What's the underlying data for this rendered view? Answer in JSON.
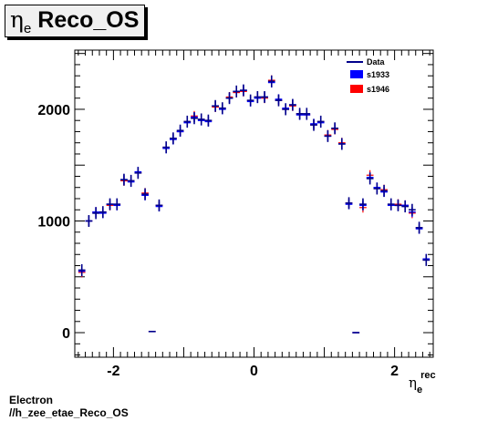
{
  "page": {
    "title_symbol": "η",
    "title_sub": "e",
    "title_text": " Reco_OS",
    "footer_line1": "Electron",
    "footer_line2": "//h_zee_etae_Reco_OS"
  },
  "colors": {
    "data": "#00008b",
    "s1933": "#0000ff",
    "s1946": "#ff0000"
  },
  "chart_data": {
    "type": "scatter",
    "xlim": [
      -2.55,
      2.55
    ],
    "ylim": [
      -220,
      2530
    ],
    "xticks": [
      -2,
      0,
      2
    ],
    "yticks": [
      0,
      1000,
      2000
    ],
    "xlabel_sym": "η",
    "xlabel_sub": "e",
    "xlabel_sup": "rec",
    "bin_width": 0.1,
    "legend": {
      "placement": "top-right",
      "entries": [
        "Data",
        "s1933",
        "s1946"
      ]
    },
    "series": [
      {
        "name": "Data",
        "x": [
          -2.45,
          -2.35,
          -2.25,
          -2.15,
          -2.05,
          -1.95,
          -1.85,
          -1.75,
          -1.65,
          -1.55,
          -1.45,
          -1.35,
          -1.25,
          -1.15,
          -1.05,
          -0.95,
          -0.85,
          -0.75,
          -0.65,
          -0.55,
          -0.45,
          -0.35,
          -0.25,
          -0.15,
          -0.05,
          0.05,
          0.15,
          0.25,
          0.35,
          0.45,
          0.55,
          0.65,
          0.75,
          0.85,
          0.95,
          1.05,
          1.15,
          1.25,
          1.35,
          1.45,
          1.55,
          1.65,
          1.75,
          1.85,
          1.95,
          2.05,
          2.15,
          2.25,
          2.35,
          2.45
        ],
        "y": [
          560,
          1000,
          1070,
          1080,
          1150,
          1150,
          1370,
          1360,
          1430,
          1240,
          10,
          1140,
          1660,
          1740,
          1810,
          1890,
          1920,
          1910,
          1900,
          2030,
          2010,
          2100,
          2160,
          2170,
          2080,
          2110,
          2110,
          2250,
          2080,
          2000,
          2040,
          1960,
          1960,
          1860,
          1890,
          1760,
          1830,
          1690,
          1160,
          0,
          1150,
          1380,
          1290,
          1270,
          1150,
          1140,
          1130,
          1100,
          940,
          650
        ]
      },
      {
        "name": "s1933",
        "x": [
          -2.45,
          -2.35,
          -2.25,
          -2.15,
          -2.05,
          -1.95,
          -1.85,
          -1.75,
          -1.65,
          -1.55,
          -1.45,
          -1.35,
          -1.25,
          -1.15,
          -1.05,
          -0.95,
          -0.85,
          -0.75,
          -0.65,
          -0.55,
          -0.45,
          -0.35,
          -0.25,
          -0.15,
          -0.05,
          0.05,
          0.15,
          0.25,
          0.35,
          0.45,
          0.55,
          0.65,
          0.75,
          0.85,
          0.95,
          1.05,
          1.15,
          1.25,
          1.35,
          1.45,
          1.55,
          1.65,
          1.75,
          1.85,
          1.95,
          2.05,
          2.15,
          2.25,
          2.35,
          2.45
        ],
        "y": [
          550,
          1000,
          1080,
          1070,
          1150,
          1140,
          1370,
          1350,
          1440,
          1230,
          10,
          1130,
          1650,
          1730,
          1800,
          1880,
          1930,
          1900,
          1890,
          2030,
          2000,
          2100,
          2160,
          2170,
          2070,
          2100,
          2110,
          2240,
          2090,
          2010,
          2040,
          1950,
          1950,
          1870,
          1880,
          1760,
          1830,
          1690,
          1150,
          0,
          1140,
          1390,
          1300,
          1260,
          1140,
          1140,
          1140,
          1080,
          930,
          660
        ]
      },
      {
        "name": "s1946",
        "x": [
          -2.45,
          -2.35,
          -2.25,
          -2.15,
          -2.05,
          -1.95,
          -1.85,
          -1.75,
          -1.65,
          -1.55,
          -1.45,
          -1.35,
          -1.25,
          -1.15,
          -1.05,
          -0.95,
          -0.85,
          -0.75,
          -0.65,
          -0.55,
          -0.45,
          -0.35,
          -0.25,
          -0.15,
          -0.05,
          0.05,
          0.15,
          0.25,
          0.35,
          0.45,
          0.55,
          0.65,
          0.75,
          0.85,
          0.95,
          1.05,
          1.15,
          1.25,
          1.35,
          1.45,
          1.55,
          1.65,
          1.75,
          1.85,
          1.95,
          2.05,
          2.15,
          2.25,
          2.35,
          2.45
        ],
        "y": [
          540,
          1000,
          1080,
          1080,
          1140,
          1150,
          1360,
          1360,
          1430,
          1250,
          10,
          1140,
          1660,
          1740,
          1800,
          1890,
          1940,
          1910,
          1900,
          2020,
          2010,
          2110,
          2150,
          2160,
          2080,
          2110,
          2100,
          2260,
          2080,
          2000,
          2030,
          1960,
          1950,
          1860,
          1890,
          1770,
          1820,
          1700,
          1160,
          0,
          1120,
          1410,
          1290,
          1280,
          1150,
          1150,
          1140,
          1070,
          940,
          650
        ]
      }
    ]
  }
}
